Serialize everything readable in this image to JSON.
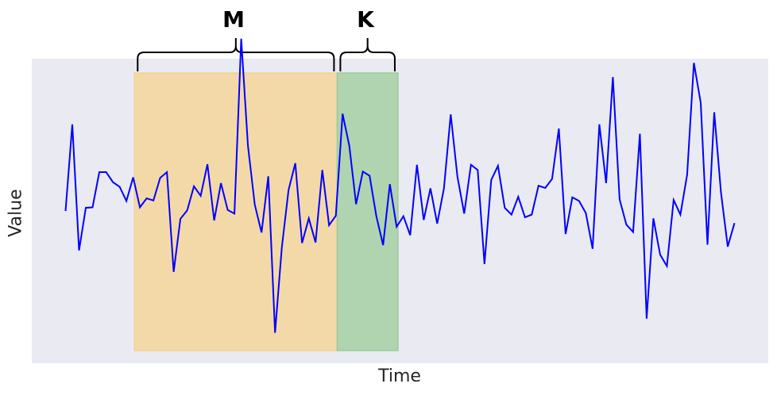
{
  "chart_data": {
    "type": "line",
    "title": "",
    "xlabel": "Time",
    "ylabel": "Value",
    "grid": false,
    "background": "#eaeaf2",
    "line_color": "#0000ff",
    "xlim": [
      -5,
      104
    ],
    "ylim": [
      -3.2,
      2.6
    ],
    "y": [
      -0.3,
      1.35,
      -1.05,
      -0.24,
      -0.23,
      0.44,
      0.44,
      0.25,
      0.16,
      -0.11,
      0.34,
      -0.23,
      -0.06,
      -0.1,
      0.33,
      0.44,
      -1.46,
      -0.45,
      -0.29,
      0.17,
      -0.01,
      0.59,
      -0.48,
      0.23,
      -0.28,
      -0.35,
      2.98,
      0.94,
      -0.18,
      -0.71,
      0.36,
      -2.62,
      -1.0,
      0.1,
      0.61,
      -0.91,
      -0.44,
      -0.9,
      0.48,
      -0.57,
      -0.39,
      1.55,
      0.94,
      -0.17,
      0.45,
      0.37,
      -0.4,
      -0.95,
      0.21,
      -0.6,
      -0.4,
      -0.76,
      0.58,
      -0.47,
      0.13,
      -0.54,
      0.13,
      1.54,
      0.35,
      -0.35,
      0.58,
      0.48,
      -1.31,
      0.29,
      0.56,
      -0.24,
      -0.37,
      -0.03,
      -0.42,
      -0.37,
      0.18,
      0.14,
      0.31,
      1.27,
      -0.74,
      -0.04,
      -0.11,
      -0.34,
      -1.02,
      1.35,
      0.23,
      2.25,
      -0.08,
      -0.56,
      -0.7,
      1.17,
      -2.35,
      -0.44,
      -1.13,
      -1.35,
      -0.09,
      -0.37,
      0.39,
      2.52,
      1.76,
      -0.94,
      1.58,
      0.05,
      -0.98,
      -0.53
    ],
    "series": [
      {
        "name": "",
        "color": "#0000ff"
      }
    ],
    "regions": [
      {
        "label": "M",
        "x_start": 10.2,
        "x_end": 40.2,
        "color": "#f5d38f"
      },
      {
        "label": "K",
        "x_start": 40.2,
        "x_end": 49.2,
        "color": "#9ccb9a"
      }
    ]
  }
}
